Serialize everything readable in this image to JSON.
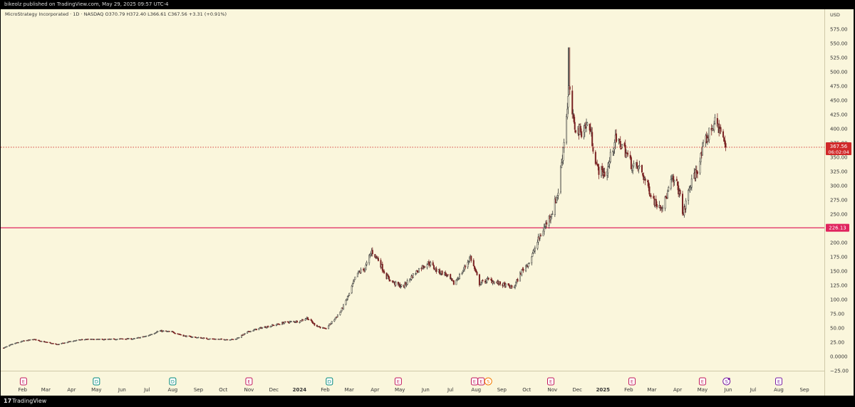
{
  "publish_line": "bikeolz published on TradingView.com, May 29, 2025 09:57 UTC-4",
  "footer": {
    "logo_glyph": "17",
    "brand": "TradingView"
  },
  "colors": {
    "background": "#faf6dc",
    "up_candle": "#3a3a3a",
    "down_candle": "#7a2323",
    "support_line": "#e0245e",
    "price_tag": "#d12a2a",
    "support_tag": "#e0245e",
    "earnings_marker": "#c2185b",
    "dividend_marker": "#00897b",
    "split_marker": "#7b1fa2"
  },
  "icons": {
    "earnings": "E",
    "dividend": "D",
    "split": "S"
  },
  "chart_data": {
    "type": "candlestick",
    "title": "MicroStrategy Incorporated · 1D · NASDAQ",
    "ohlc_label": "O370.79  H372.40  L366.61  C367.56  +3.31 (+0.91%)",
    "currency": "USD",
    "ylim": [
      -25,
      600
    ],
    "y_ticks": [
      575,
      550,
      525,
      500,
      475,
      450,
      425,
      400,
      375,
      350,
      325,
      300,
      275,
      250,
      225,
      200,
      175,
      150,
      125,
      100,
      75,
      50,
      25,
      0,
      -25
    ],
    "y_tick_labels": [
      "575.00",
      "550.00",
      "525.00",
      "500.00",
      "475.00",
      "450.00",
      "425.00",
      "400.00",
      "375.00",
      "350.00",
      "325.00",
      "300.00",
      "275.00",
      "250.00",
      "225.00",
      "200.00",
      "175.00",
      "150.00",
      "125.00",
      "100.00",
      "75.00",
      "50.00",
      "25.00",
      "0.0000",
      "−25.00"
    ],
    "x_ticks": [
      {
        "date": "2023-02-01",
        "label": "Feb"
      },
      {
        "date": "2023-03-01",
        "label": "Mar"
      },
      {
        "date": "2023-04-01",
        "label": "Apr"
      },
      {
        "date": "2023-05-01",
        "label": "May"
      },
      {
        "date": "2023-06-01",
        "label": "Jun"
      },
      {
        "date": "2023-07-01",
        "label": "Jul"
      },
      {
        "date": "2023-08-01",
        "label": "Aug"
      },
      {
        "date": "2023-09-01",
        "label": "Sep"
      },
      {
        "date": "2023-10-01",
        "label": "Oct"
      },
      {
        "date": "2023-11-01",
        "label": "Nov"
      },
      {
        "date": "2023-12-01",
        "label": "Dec"
      },
      {
        "date": "2024-01-01",
        "label": "2024",
        "bold": true
      },
      {
        "date": "2024-02-01",
        "label": "Feb"
      },
      {
        "date": "2024-03-01",
        "label": "Mar"
      },
      {
        "date": "2024-04-01",
        "label": "Apr"
      },
      {
        "date": "2024-05-01",
        "label": "May"
      },
      {
        "date": "2024-06-01",
        "label": "Jun"
      },
      {
        "date": "2024-07-01",
        "label": "Jul"
      },
      {
        "date": "2024-08-01",
        "label": "Aug"
      },
      {
        "date": "2024-09-01",
        "label": "Sep"
      },
      {
        "date": "2024-10-01",
        "label": "Oct"
      },
      {
        "date": "2024-11-01",
        "label": "Nov"
      },
      {
        "date": "2024-12-01",
        "label": "Dec"
      },
      {
        "date": "2025-01-01",
        "label": "2025",
        "bold": true
      },
      {
        "date": "2025-02-01",
        "label": "Feb"
      },
      {
        "date": "2025-03-01",
        "label": "Mar"
      },
      {
        "date": "2025-04-01",
        "label": "Apr"
      },
      {
        "date": "2025-05-01",
        "label": "May"
      },
      {
        "date": "2025-06-01",
        "label": "Jun"
      },
      {
        "date": "2025-07-01",
        "label": "Jul"
      },
      {
        "date": "2025-08-01",
        "label": "Aug"
      },
      {
        "date": "2025-09-01",
        "label": "Sep"
      }
    ],
    "xlim": [
      "2023-01-09",
      "2025-09-25"
    ],
    "current_price": {
      "value": 367.56,
      "label": "367.56",
      "countdown": "06:02:04"
    },
    "support_level": {
      "value": 226.13,
      "label": "226.13"
    },
    "markers": [
      {
        "date": "2023-02-02",
        "type": "earnings"
      },
      {
        "date": "2023-05-01",
        "type": "dividend"
      },
      {
        "date": "2023-08-01",
        "type": "dividend"
      },
      {
        "date": "2023-11-01",
        "type": "earnings"
      },
      {
        "date": "2024-02-06",
        "type": "dividend"
      },
      {
        "date": "2024-04-29",
        "type": "earnings"
      },
      {
        "date": "2024-07-30",
        "type": "earnings"
      },
      {
        "date": "2024-08-07",
        "type": "split_dividend"
      },
      {
        "date": "2024-10-30",
        "type": "earnings"
      },
      {
        "date": "2025-02-05",
        "type": "earnings"
      },
      {
        "date": "2025-05-01",
        "type": "earnings"
      },
      {
        "date": "2025-05-30",
        "type": "split_upcoming"
      },
      {
        "date": "2025-08-01",
        "type": "earnings_upcoming"
      }
    ],
    "price_path": [
      [
        "2023-01-09",
        15
      ],
      [
        "2023-01-20",
        22
      ],
      [
        "2023-02-01",
        27
      ],
      [
        "2023-02-15",
        30
      ],
      [
        "2023-03-01",
        25
      ],
      [
        "2023-03-15",
        21
      ],
      [
        "2023-04-01",
        27
      ],
      [
        "2023-04-15",
        30
      ],
      [
        "2023-05-01",
        30
      ],
      [
        "2023-05-15",
        30
      ],
      [
        "2023-06-01",
        31
      ],
      [
        "2023-06-15",
        31
      ],
      [
        "2023-07-01",
        36
      ],
      [
        "2023-07-15",
        45
      ],
      [
        "2023-08-01",
        43
      ],
      [
        "2023-08-15",
        36
      ],
      [
        "2023-09-01",
        33
      ],
      [
        "2023-09-15",
        31
      ],
      [
        "2023-10-01",
        30
      ],
      [
        "2023-10-15",
        30
      ],
      [
        "2023-11-01",
        44
      ],
      [
        "2023-11-15",
        50
      ],
      [
        "2023-12-01",
        55
      ],
      [
        "2023-12-15",
        60
      ],
      [
        "2024-01-01",
        62
      ],
      [
        "2024-01-10",
        68
      ],
      [
        "2024-01-20",
        55
      ],
      [
        "2024-02-01",
        48
      ],
      [
        "2024-02-10",
        62
      ],
      [
        "2024-02-20",
        80
      ],
      [
        "2024-03-01",
        110
      ],
      [
        "2024-03-10",
        145
      ],
      [
        "2024-03-20",
        155
      ],
      [
        "2024-03-28",
        185
      ],
      [
        "2024-04-05",
        170
      ],
      [
        "2024-04-15",
        140
      ],
      [
        "2024-04-25",
        128
      ],
      [
        "2024-05-05",
        122
      ],
      [
        "2024-05-15",
        140
      ],
      [
        "2024-05-25",
        155
      ],
      [
        "2024-06-05",
        165
      ],
      [
        "2024-06-15",
        150
      ],
      [
        "2024-06-25",
        145
      ],
      [
        "2024-07-05",
        128
      ],
      [
        "2024-07-15",
        148
      ],
      [
        "2024-07-25",
        175
      ],
      [
        "2024-08-05",
        128
      ],
      [
        "2024-08-15",
        135
      ],
      [
        "2024-08-25",
        130
      ],
      [
        "2024-09-05",
        125
      ],
      [
        "2024-09-15",
        120
      ],
      [
        "2024-09-25",
        150
      ],
      [
        "2024-10-05",
        168
      ],
      [
        "2024-10-15",
        205
      ],
      [
        "2024-10-25",
        235
      ],
      [
        "2024-11-01",
        255
      ],
      [
        "2024-11-08",
        290
      ],
      [
        "2024-11-15",
        380
      ],
      [
        "2024-11-21",
        470
      ],
      [
        "2024-11-27",
        405
      ],
      [
        "2024-12-05",
        395
      ],
      [
        "2024-12-15",
        410
      ],
      [
        "2024-12-25",
        330
      ],
      [
        "2025-01-05",
        320
      ],
      [
        "2025-01-15",
        380
      ],
      [
        "2025-01-25",
        370
      ],
      [
        "2025-02-05",
        335
      ],
      [
        "2025-02-15",
        330
      ],
      [
        "2025-02-25",
        295
      ],
      [
        "2025-03-05",
        270
      ],
      [
        "2025-03-15",
        265
      ],
      [
        "2025-03-25",
        310
      ],
      [
        "2025-04-01",
        300
      ],
      [
        "2025-04-08",
        250
      ],
      [
        "2025-04-15",
        295
      ],
      [
        "2025-04-25",
        330
      ],
      [
        "2025-05-05",
        380
      ],
      [
        "2025-05-15",
        410
      ],
      [
        "2025-05-22",
        400
      ],
      [
        "2025-05-29",
        367.56
      ]
    ]
  }
}
